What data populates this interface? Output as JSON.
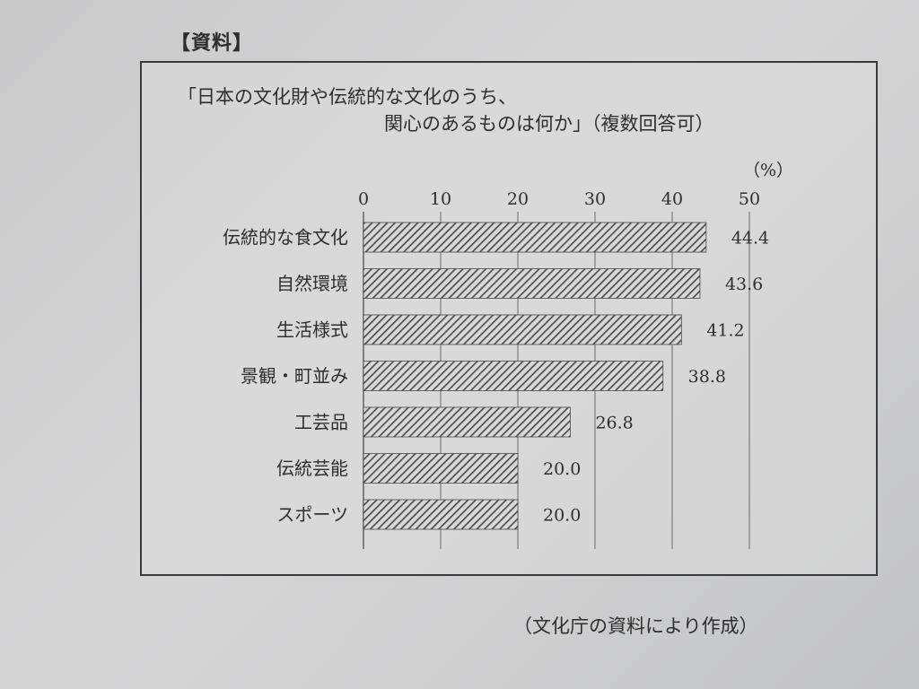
{
  "header_label": "【資料】",
  "source_note": "（文化庁の資料により作成）",
  "chart_data": {
    "type": "bar",
    "orientation": "horizontal",
    "title_line1": "「日本の文化財や伝統的な文化のうち、",
    "title_line2": "関心のあるものは何か」（複数回答可）",
    "unit": "（%）",
    "xlim": [
      0,
      50
    ],
    "ticks": [
      "0",
      "10",
      "20",
      "30",
      "40",
      "50"
    ],
    "grid": "vertical",
    "categories": [
      "伝統的な食文化",
      "自然環境",
      "生活様式",
      "景観・町並み",
      "工芸品",
      "伝統芸能",
      "スポーツ"
    ],
    "values": [
      44.4,
      43.6,
      41.2,
      38.8,
      26.8,
      20.0,
      20.0
    ],
    "value_labels": [
      "44.4",
      "43.6",
      "41.2",
      "38.8",
      "26.8",
      "20.0",
      "20.0"
    ],
    "bar_pattern": "diagonal-hatch",
    "bar_color": "#555555"
  }
}
